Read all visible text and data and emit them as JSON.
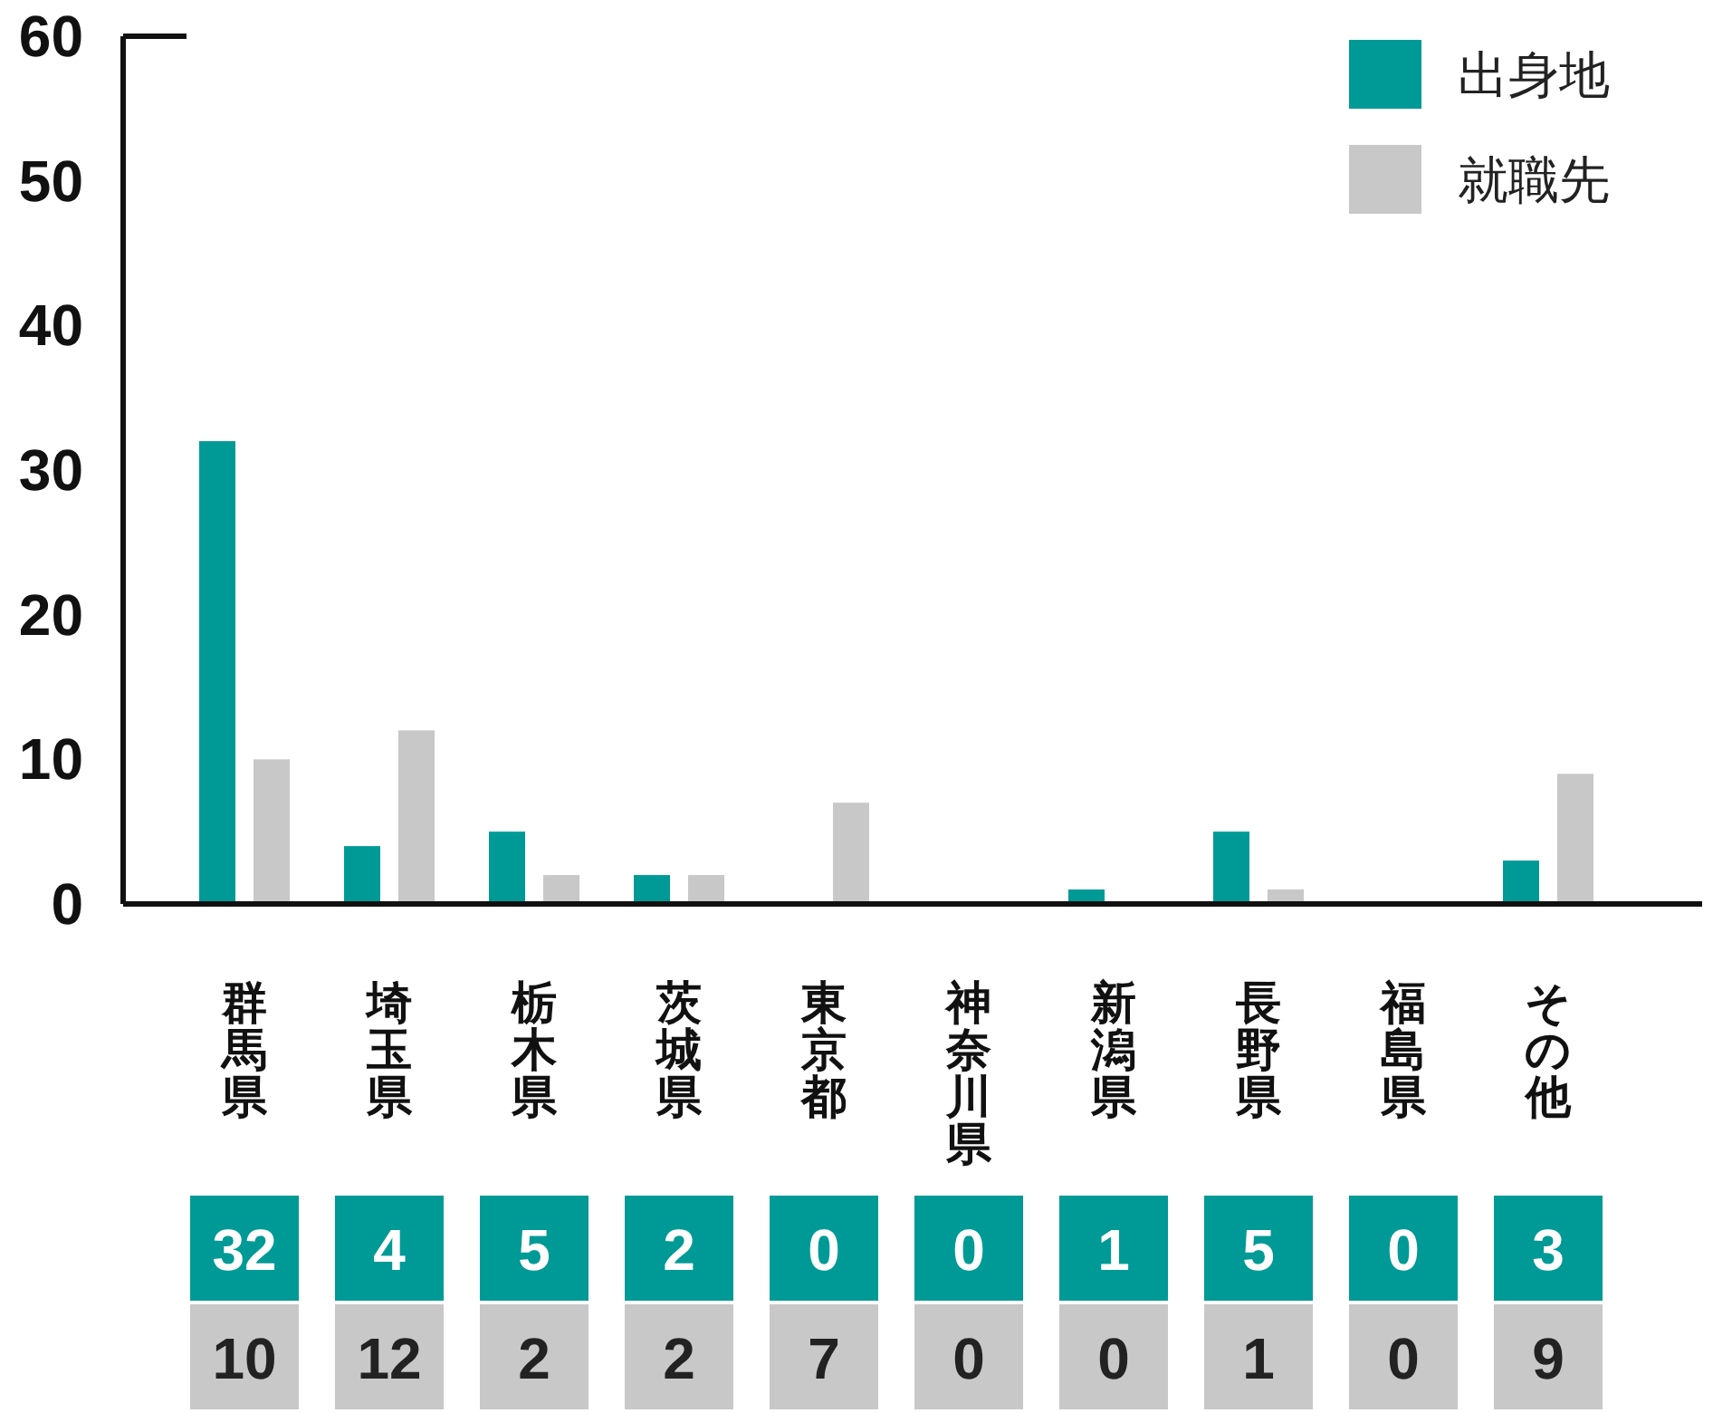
{
  "chart_data": {
    "type": "bar",
    "categories": [
      "群馬県",
      "埼玉県",
      "栃木県",
      "茨城県",
      "東京都",
      "神奈川県",
      "新潟県",
      "長野県",
      "福島県",
      "その他"
    ],
    "series": [
      {
        "name": "出身地",
        "color": "#009a96",
        "values": [
          32,
          4,
          5,
          2,
          0,
          0,
          1,
          5,
          0,
          3
        ]
      },
      {
        "name": "就職先",
        "color": "#c8c8c8",
        "values": [
          10,
          12,
          2,
          2,
          7,
          0,
          0,
          1,
          0,
          9
        ]
      }
    ],
    "ylim": [
      0,
      60
    ],
    "yticks": [
      0,
      10,
      20,
      30,
      40,
      50,
      60
    ],
    "legend": "top right",
    "data_labels": true
  }
}
